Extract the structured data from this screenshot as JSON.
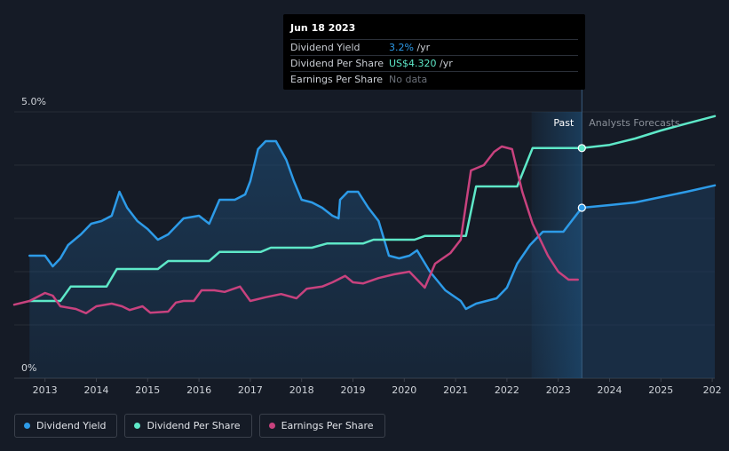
{
  "tooltip": {
    "date": "Jun 18 2023",
    "rows": [
      {
        "label": "Dividend Yield",
        "value": "3.2%",
        "unit": " /yr",
        "color": "#2d9be8"
      },
      {
        "label": "Dividend Per Share",
        "value": "US$4.320",
        "unit": " /yr",
        "color": "#5ee8c8"
      },
      {
        "label": "Earnings Per Share",
        "value": "No data",
        "unit": "",
        "color": "#6b7079"
      }
    ]
  },
  "chart_data": {
    "type": "line",
    "y_axis_labels": [
      "5.0%",
      "0%"
    ],
    "ylim": [
      0,
      5.0
    ],
    "x_ticks": [
      "2013",
      "2014",
      "2015",
      "2016",
      "2017",
      "2018",
      "2019",
      "2020",
      "2021",
      "2022",
      "2023",
      "2024",
      "2025",
      "202"
    ],
    "xlim": [
      2012.4,
      2026.05
    ],
    "past_label": "Past",
    "forecast_label": "Analysts Forecasts",
    "past_end": 2023.46,
    "past_shade_start": 2022.48,
    "grid": true,
    "series": [
      {
        "name": "Dividend Yield",
        "color": "#2d9be8",
        "fill": true,
        "points": [
          [
            2012.7,
            2.3
          ],
          [
            2013.0,
            2.3
          ],
          [
            2013.15,
            2.1
          ],
          [
            2013.3,
            2.25
          ],
          [
            2013.45,
            2.5
          ],
          [
            2013.7,
            2.7
          ],
          [
            2013.9,
            2.9
          ],
          [
            2014.1,
            2.95
          ],
          [
            2014.3,
            3.05
          ],
          [
            2014.45,
            3.5
          ],
          [
            2014.6,
            3.2
          ],
          [
            2014.8,
            2.95
          ],
          [
            2015.0,
            2.8
          ],
          [
            2015.2,
            2.6
          ],
          [
            2015.4,
            2.7
          ],
          [
            2015.7,
            3.0
          ],
          [
            2016.0,
            3.05
          ],
          [
            2016.2,
            2.9
          ],
          [
            2016.4,
            3.35
          ],
          [
            2016.7,
            3.35
          ],
          [
            2016.9,
            3.45
          ],
          [
            2017.0,
            3.7
          ],
          [
            2017.15,
            4.3
          ],
          [
            2017.3,
            4.45
          ],
          [
            2017.5,
            4.45
          ],
          [
            2017.7,
            4.1
          ],
          [
            2017.85,
            3.7
          ],
          [
            2018.0,
            3.35
          ],
          [
            2018.2,
            3.3
          ],
          [
            2018.4,
            3.2
          ],
          [
            2018.6,
            3.05
          ],
          [
            2018.72,
            3.0
          ],
          [
            2018.75,
            3.35
          ],
          [
            2018.9,
            3.5
          ],
          [
            2019.1,
            3.5
          ],
          [
            2019.3,
            3.2
          ],
          [
            2019.5,
            2.95
          ],
          [
            2019.7,
            2.3
          ],
          [
            2019.9,
            2.25
          ],
          [
            2020.1,
            2.3
          ],
          [
            2020.25,
            2.4
          ],
          [
            2020.5,
            2.0
          ],
          [
            2020.8,
            1.65
          ],
          [
            2021.1,
            1.45
          ],
          [
            2021.2,
            1.3
          ],
          [
            2021.4,
            1.4
          ],
          [
            2021.6,
            1.45
          ],
          [
            2021.8,
            1.5
          ],
          [
            2022.0,
            1.7
          ],
          [
            2022.2,
            2.15
          ],
          [
            2022.45,
            2.5
          ],
          [
            2022.7,
            2.75
          ],
          [
            2022.9,
            2.75
          ],
          [
            2023.1,
            2.75
          ],
          [
            2023.3,
            3.0
          ],
          [
            2023.46,
            3.2
          ]
        ]
      },
      {
        "name": "Dividend Yield (forecast)",
        "color": "#2d9be8",
        "fill": true,
        "forecast": true,
        "points": [
          [
            2023.46,
            3.2
          ],
          [
            2024.0,
            3.25
          ],
          [
            2024.5,
            3.3
          ],
          [
            2025.0,
            3.4
          ],
          [
            2025.5,
            3.5
          ],
          [
            2026.05,
            3.62
          ]
        ]
      },
      {
        "name": "Dividend Per Share",
        "color": "#5ee8c8",
        "fill": false,
        "points": [
          [
            2012.7,
            1.45
          ],
          [
            2013.3,
            1.45
          ],
          [
            2013.5,
            1.72
          ],
          [
            2014.2,
            1.72
          ],
          [
            2014.4,
            2.05
          ],
          [
            2015.2,
            2.05
          ],
          [
            2015.4,
            2.2
          ],
          [
            2016.2,
            2.2
          ],
          [
            2016.4,
            2.37
          ],
          [
            2017.2,
            2.37
          ],
          [
            2017.4,
            2.45
          ],
          [
            2018.2,
            2.45
          ],
          [
            2018.5,
            2.53
          ],
          [
            2019.2,
            2.53
          ],
          [
            2019.4,
            2.6
          ],
          [
            2020.2,
            2.6
          ],
          [
            2020.4,
            2.67
          ],
          [
            2021.2,
            2.67
          ],
          [
            2021.4,
            3.6
          ],
          [
            2022.2,
            3.6
          ],
          [
            2022.5,
            4.32
          ],
          [
            2023.46,
            4.32
          ]
        ]
      },
      {
        "name": "Dividend Per Share (forecast)",
        "color": "#5ee8c8",
        "fill": false,
        "forecast": true,
        "points": [
          [
            2023.46,
            4.32
          ],
          [
            2024.0,
            4.38
          ],
          [
            2024.5,
            4.5
          ],
          [
            2025.0,
            4.65
          ],
          [
            2025.5,
            4.78
          ],
          [
            2026.05,
            4.92
          ]
        ]
      },
      {
        "name": "Earnings Per Share",
        "color": "#c8427e",
        "fill": false,
        "points": [
          [
            2012.4,
            1.38
          ],
          [
            2012.7,
            1.45
          ],
          [
            2013.0,
            1.6
          ],
          [
            2013.15,
            1.55
          ],
          [
            2013.3,
            1.35
          ],
          [
            2013.6,
            1.3
          ],
          [
            2013.8,
            1.22
          ],
          [
            2014.0,
            1.35
          ],
          [
            2014.3,
            1.4
          ],
          [
            2014.5,
            1.35
          ],
          [
            2014.65,
            1.28
          ],
          [
            2014.9,
            1.35
          ],
          [
            2015.05,
            1.23
          ],
          [
            2015.4,
            1.25
          ],
          [
            2015.55,
            1.42
          ],
          [
            2015.7,
            1.45
          ],
          [
            2015.9,
            1.45
          ],
          [
            2016.05,
            1.65
          ],
          [
            2016.3,
            1.65
          ],
          [
            2016.5,
            1.62
          ],
          [
            2016.8,
            1.72
          ],
          [
            2017.0,
            1.45
          ],
          [
            2017.3,
            1.52
          ],
          [
            2017.6,
            1.58
          ],
          [
            2017.9,
            1.5
          ],
          [
            2018.1,
            1.68
          ],
          [
            2018.4,
            1.72
          ],
          [
            2018.6,
            1.8
          ],
          [
            2018.85,
            1.92
          ],
          [
            2019.0,
            1.8
          ],
          [
            2019.2,
            1.78
          ],
          [
            2019.5,
            1.88
          ],
          [
            2019.8,
            1.95
          ],
          [
            2020.1,
            2.0
          ],
          [
            2020.2,
            1.9
          ],
          [
            2020.4,
            1.7
          ],
          [
            2020.6,
            2.15
          ],
          [
            2020.9,
            2.35
          ],
          [
            2021.1,
            2.6
          ],
          [
            2021.3,
            3.9
          ],
          [
            2021.55,
            4.0
          ],
          [
            2021.75,
            4.25
          ],
          [
            2021.9,
            4.35
          ],
          [
            2022.1,
            4.3
          ],
          [
            2022.3,
            3.5
          ],
          [
            2022.5,
            2.9
          ],
          [
            2022.8,
            2.3
          ],
          [
            2023.0,
            2.0
          ],
          [
            2023.2,
            1.85
          ],
          [
            2023.38,
            1.85
          ]
        ]
      }
    ],
    "markers": [
      {
        "series": "Dividend Yield",
        "x": 2023.46,
        "y": 3.2
      },
      {
        "series": "Dividend Per Share",
        "x": 2023.46,
        "y": 4.32
      }
    ]
  },
  "legend": [
    {
      "label": "Dividend Yield",
      "color": "#2d9be8"
    },
    {
      "label": "Dividend Per Share",
      "color": "#5ee8c8"
    },
    {
      "label": "Earnings Per Share",
      "color": "#c8427e"
    }
  ]
}
